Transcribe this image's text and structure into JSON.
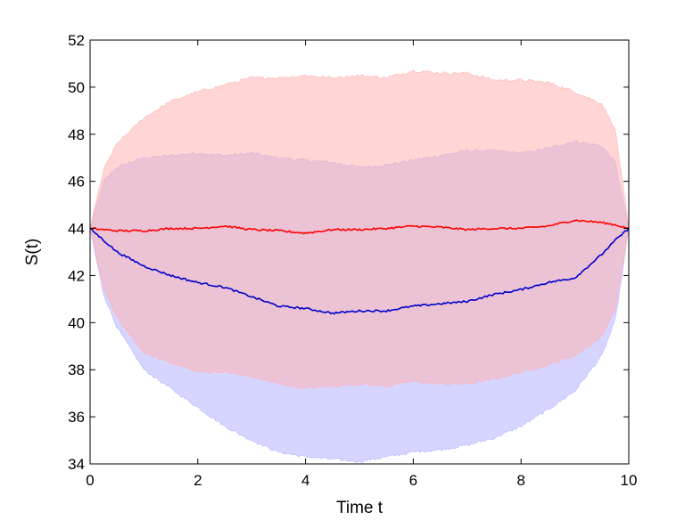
{
  "chart_data": {
    "type": "area",
    "title": "",
    "xlabel": "Time t",
    "ylabel": "S(t)",
    "xlim": [
      0,
      10
    ],
    "ylim": [
      34,
      52
    ],
    "xticks": [
      0,
      2,
      4,
      6,
      8,
      10
    ],
    "yticks": [
      34,
      36,
      38,
      40,
      42,
      44,
      46,
      48,
      50,
      52
    ],
    "xtick_labels": [
      "0",
      "2",
      "4",
      "6",
      "8",
      "10"
    ],
    "ytick_labels": [
      "34",
      "36",
      "38",
      "40",
      "42",
      "44",
      "46",
      "48",
      "50",
      "52"
    ],
    "grid": false,
    "legend": "none",
    "series": [
      {
        "color": "#ff0000",
        "band_color": "#ffb3b3",
        "x": [
          0,
          0.25,
          0.5,
          1,
          1.5,
          2,
          2.5,
          3,
          3.5,
          4,
          4.5,
          5,
          5.5,
          6,
          6.5,
          7,
          7.5,
          8,
          8.5,
          9,
          9.5,
          9.75,
          10
        ],
        "mean": [
          44.0,
          43.95,
          43.9,
          43.9,
          44.0,
          44.0,
          44.1,
          43.95,
          43.9,
          43.8,
          43.95,
          43.95,
          44.0,
          44.1,
          44.05,
          43.95,
          44.0,
          44.0,
          44.1,
          44.35,
          44.25,
          44.15,
          44.0
        ],
        "upper": [
          44.0,
          46.5,
          47.6,
          48.7,
          49.4,
          49.8,
          50.1,
          50.4,
          50.4,
          50.5,
          50.4,
          50.5,
          50.4,
          50.7,
          50.6,
          50.6,
          50.3,
          50.3,
          50.2,
          49.8,
          49.3,
          48.2,
          44.0
        ],
        "lower": [
          44.0,
          41.5,
          40.2,
          38.7,
          38.3,
          37.9,
          37.9,
          37.7,
          37.4,
          37.2,
          37.3,
          37.4,
          37.3,
          37.5,
          37.4,
          37.4,
          37.6,
          37.9,
          38.2,
          38.6,
          39.4,
          40.6,
          44.0
        ]
      },
      {
        "color": "#0000cc",
        "band_color": "#b3b3ff",
        "x": [
          0,
          0.25,
          0.5,
          1,
          1.5,
          2,
          2.5,
          3,
          3.5,
          4,
          4.5,
          5,
          5.5,
          6,
          6.5,
          7,
          7.5,
          8,
          8.5,
          9,
          9.5,
          9.75,
          10
        ],
        "mean": [
          44.0,
          43.5,
          43.0,
          42.4,
          42.0,
          41.7,
          41.5,
          41.1,
          40.7,
          40.6,
          40.4,
          40.5,
          40.5,
          40.7,
          40.8,
          40.9,
          41.2,
          41.4,
          41.7,
          41.9,
          42.9,
          43.5,
          44.0
        ],
        "upper": [
          44.0,
          46.0,
          46.6,
          47.0,
          47.1,
          47.2,
          47.1,
          47.2,
          47.0,
          46.9,
          46.8,
          46.6,
          46.7,
          46.9,
          47.1,
          47.3,
          47.3,
          47.2,
          47.4,
          47.7,
          47.5,
          46.8,
          44.0
        ],
        "lower": [
          44.0,
          41.2,
          39.8,
          38.0,
          37.2,
          36.4,
          35.6,
          35.0,
          34.5,
          34.3,
          34.2,
          34.1,
          34.3,
          34.5,
          34.6,
          34.8,
          35.1,
          35.6,
          36.3,
          37.1,
          38.6,
          40.1,
          44.0
        ]
      }
    ]
  }
}
